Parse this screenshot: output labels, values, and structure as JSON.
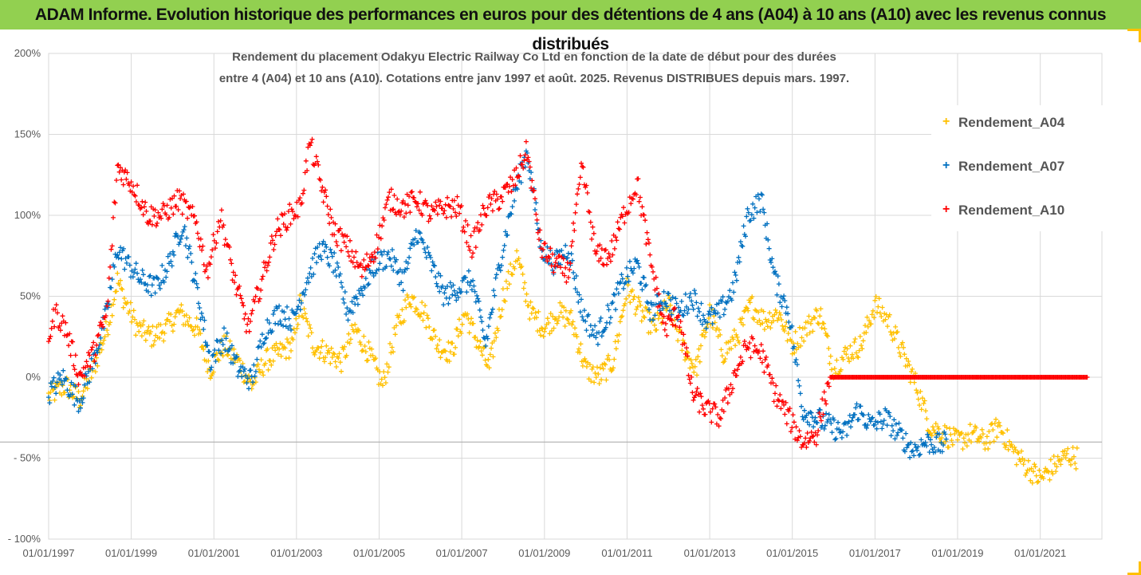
{
  "header": {
    "title": "ADAM Informe. Evolution historique des performances en euros pour des détentions de 4 ans (A04) à 10 ans (A10) avec les revenus connus distribués"
  },
  "colors": {
    "header_bg": "#92d050",
    "A04": "#ffc000",
    "A07": "#0070c0",
    "A10": "#ff0000",
    "grid": "#d9d9d9",
    "text": "#595959"
  },
  "chart_data": {
    "type": "scatter",
    "title_lines": [
      "Rendement du placement Odakyu Electric Railway Co Ltd en fonction de la date de début pour des durées",
      "entre 4 (A04) et 10 ans (A10). Cotations entre janv 1997 et août. 2025. Revenus DISTRIBUES depuis mars. 1997."
    ],
    "xlabel": "",
    "ylabel": "",
    "x_range": [
      "1997-01-01",
      "2022-06-30"
    ],
    "ylim": [
      -100,
      200
    ],
    "y_unit": "%",
    "y_ticks": [
      "200%",
      "150%",
      "100%",
      "50%",
      "0%",
      "- 50%",
      "- 100%"
    ],
    "y_tick_values": [
      200,
      150,
      100,
      50,
      0,
      -50,
      -100
    ],
    "x_ticks": [
      "01/01/1997",
      "01/01/1999",
      "01/01/2001",
      "01/01/2003",
      "01/01/2005",
      "01/01/2007",
      "01/01/2009",
      "01/01/2011",
      "01/01/2013",
      "01/01/2015",
      "01/01/2017",
      "01/01/2019",
      "01/01/2021"
    ],
    "x_tick_years": [
      1997,
      1999,
      2001,
      2003,
      2005,
      2007,
      2009,
      2011,
      2013,
      2015,
      2017,
      2019,
      2021
    ],
    "grid": true,
    "legend_position": "top-right",
    "marker": "+",
    "series": [
      {
        "name": "Rendement_A04",
        "color": "#ffc000",
        "points": [
          [
            "1997-01",
            -12
          ],
          [
            "1997-06",
            -5
          ],
          [
            "1997-10",
            -14
          ],
          [
            "1998-02",
            5
          ],
          [
            "1998-06",
            30
          ],
          [
            "1998-09",
            60
          ],
          [
            "1998-11",
            48
          ],
          [
            "1999-03",
            30
          ],
          [
            "1999-07",
            25
          ],
          [
            "1999-11",
            30
          ],
          [
            "2000-03",
            40
          ],
          [
            "2000-08",
            30
          ],
          [
            "2000-12",
            5
          ],
          [
            "2001-04",
            20
          ],
          [
            "2001-08",
            10
          ],
          [
            "2001-12",
            -5
          ],
          [
            "2002-04",
            10
          ],
          [
            "2002-08",
            15
          ],
          [
            "2002-12",
            20
          ],
          [
            "2003-02",
            45
          ],
          [
            "2003-06",
            20
          ],
          [
            "2003-10",
            15
          ],
          [
            "2004-02",
            10
          ],
          [
            "2004-06",
            30
          ],
          [
            "2004-10",
            15
          ],
          [
            "2005-02",
            -5
          ],
          [
            "2005-06",
            30
          ],
          [
            "2005-10",
            50
          ],
          [
            "2006-02",
            40
          ],
          [
            "2006-06",
            20
          ],
          [
            "2006-10",
            15
          ],
          [
            "2007-02",
            40
          ],
          [
            "2007-05",
            25
          ],
          [
            "2007-09",
            5
          ],
          [
            "2008-01",
            50
          ],
          [
            "2008-05",
            75
          ],
          [
            "2008-09",
            40
          ],
          [
            "2009-01",
            30
          ],
          [
            "2009-05",
            40
          ],
          [
            "2009-09",
            35
          ],
          [
            "2010-01",
            5
          ],
          [
            "2010-05",
            0
          ],
          [
            "2010-09",
            10
          ],
          [
            "2011-01",
            55
          ],
          [
            "2011-05",
            40
          ],
          [
            "2011-09",
            30
          ],
          [
            "2012-01",
            45
          ],
          [
            "2012-05",
            20
          ],
          [
            "2012-09",
            5
          ],
          [
            "2013-01",
            40
          ],
          [
            "2013-05",
            15
          ],
          [
            "2013-09",
            25
          ],
          [
            "2014-01",
            45
          ],
          [
            "2014-05",
            35
          ],
          [
            "2014-09",
            40
          ],
          [
            "2015-01",
            20
          ],
          [
            "2015-05",
            30
          ],
          [
            "2015-09",
            40
          ],
          [
            "2016-01",
            5
          ],
          [
            "2016-05",
            15
          ],
          [
            "2016-09",
            20
          ],
          [
            "2017-01",
            45
          ],
          [
            "2017-05",
            35
          ],
          [
            "2017-09",
            15
          ],
          [
            "2018-01",
            -5
          ],
          [
            "2018-05",
            -30
          ],
          [
            "2018-09",
            -35
          ],
          [
            "2019-01",
            -40
          ],
          [
            "2019-05",
            -35
          ],
          [
            "2019-09",
            -40
          ],
          [
            "2020-01",
            -30
          ],
          [
            "2020-05",
            -45
          ],
          [
            "2020-09",
            -55
          ],
          [
            "2021-01",
            -63
          ],
          [
            "2021-05",
            -55
          ],
          [
            "2021-09",
            -48
          ],
          [
            "2021-12",
            -50
          ]
        ]
      },
      {
        "name": "Rendement_A07",
        "color": "#0070c0",
        "points": [
          [
            "1997-01",
            -10
          ],
          [
            "1997-05",
            0
          ],
          [
            "1997-10",
            -15
          ],
          [
            "1998-02",
            10
          ],
          [
            "1998-06",
            40
          ],
          [
            "1998-09",
            80
          ],
          [
            "1998-12",
            70
          ],
          [
            "1999-04",
            60
          ],
          [
            "1999-08",
            55
          ],
          [
            "1999-12",
            70
          ],
          [
            "2000-04",
            95
          ],
          [
            "2000-08",
            55
          ],
          [
            "2000-12",
            10
          ],
          [
            "2001-04",
            25
          ],
          [
            "2001-08",
            5
          ],
          [
            "2001-12",
            -2
          ],
          [
            "2002-04",
            30
          ],
          [
            "2002-08",
            40
          ],
          [
            "2002-12",
            35
          ],
          [
            "2003-04",
            60
          ],
          [
            "2003-08",
            80
          ],
          [
            "2003-12",
            70
          ],
          [
            "2004-04",
            40
          ],
          [
            "2004-08",
            55
          ],
          [
            "2004-12",
            70
          ],
          [
            "2005-04",
            75
          ],
          [
            "2005-08",
            60
          ],
          [
            "2005-12",
            90
          ],
          [
            "2006-04",
            70
          ],
          [
            "2006-08",
            50
          ],
          [
            "2006-12",
            55
          ],
          [
            "2007-04",
            60
          ],
          [
            "2007-08",
            20
          ],
          [
            "2007-12",
            70
          ],
          [
            "2008-04",
            110
          ],
          [
            "2008-08",
            140
          ],
          [
            "2008-12",
            80
          ],
          [
            "2009-04",
            70
          ],
          [
            "2009-08",
            80
          ],
          [
            "2009-12",
            40
          ],
          [
            "2010-04",
            25
          ],
          [
            "2010-08",
            40
          ],
          [
            "2010-12",
            60
          ],
          [
            "2011-04",
            70
          ],
          [
            "2011-08",
            40
          ],
          [
            "2011-12",
            50
          ],
          [
            "2012-04",
            40
          ],
          [
            "2012-08",
            50
          ],
          [
            "2012-12",
            35
          ],
          [
            "2013-04",
            40
          ],
          [
            "2013-08",
            55
          ],
          [
            "2013-12",
            100
          ],
          [
            "2014-04",
            110
          ],
          [
            "2014-08",
            60
          ],
          [
            "2014-12",
            40
          ],
          [
            "2015-04",
            -20
          ],
          [
            "2015-08",
            -25
          ],
          [
            "2015-12",
            -30
          ],
          [
            "2016-04",
            -35
          ],
          [
            "2016-08",
            -20
          ],
          [
            "2016-12",
            -30
          ],
          [
            "2017-04",
            -25
          ],
          [
            "2017-08",
            -35
          ],
          [
            "2017-12",
            -45
          ],
          [
            "2018-04",
            -40
          ],
          [
            "2018-08",
            -42
          ],
          [
            "2018-10",
            -40
          ]
        ]
      },
      {
        "name": "Rendement_A10",
        "color": "#ff0000",
        "points": [
          [
            "1997-01",
            25
          ],
          [
            "1997-03",
            40
          ],
          [
            "1997-06",
            30
          ],
          [
            "1997-10",
            0
          ],
          [
            "1998-02",
            15
          ],
          [
            "1998-06",
            40
          ],
          [
            "1998-09",
            130
          ],
          [
            "1999-01",
            120
          ],
          [
            "1999-06",
            100
          ],
          [
            "1999-10",
            100
          ],
          [
            "2000-03",
            110
          ],
          [
            "2000-08",
            95
          ],
          [
            "2000-11",
            65
          ],
          [
            "2001-03",
            100
          ],
          [
            "2001-07",
            60
          ],
          [
            "2001-11",
            30
          ],
          [
            "2002-03",
            60
          ],
          [
            "2002-07",
            90
          ],
          [
            "2002-11",
            100
          ],
          [
            "2003-02",
            105
          ],
          [
            "2003-05",
            145
          ],
          [
            "2003-08",
            120
          ],
          [
            "2003-12",
            90
          ],
          [
            "2004-04",
            80
          ],
          [
            "2004-08",
            65
          ],
          [
            "2004-12",
            80
          ],
          [
            "2005-04",
            110
          ],
          [
            "2005-08",
            105
          ],
          [
            "2005-12",
            110
          ],
          [
            "2006-04",
            100
          ],
          [
            "2006-08",
            105
          ],
          [
            "2006-12",
            105
          ],
          [
            "2007-04",
            80
          ],
          [
            "2007-08",
            105
          ],
          [
            "2007-12",
            110
          ],
          [
            "2008-04",
            120
          ],
          [
            "2008-08",
            140
          ],
          [
            "2008-12",
            80
          ],
          [
            "2009-04",
            70
          ],
          [
            "2009-08",
            65
          ],
          [
            "2009-12",
            130
          ],
          [
            "2010-04",
            75
          ],
          [
            "2010-08",
            75
          ],
          [
            "2010-12",
            100
          ],
          [
            "2011-04",
            120
          ],
          [
            "2011-08",
            70
          ],
          [
            "2011-12",
            30
          ],
          [
            "2012-04",
            40
          ],
          [
            "2012-08",
            -10
          ],
          [
            "2012-12",
            -20
          ],
          [
            "2013-04",
            -25
          ],
          [
            "2013-08",
            0
          ],
          [
            "2013-12",
            20
          ],
          [
            "2014-04",
            15
          ],
          [
            "2014-08",
            -10
          ],
          [
            "2014-12",
            -25
          ],
          [
            "2015-04",
            -40
          ],
          [
            "2015-08",
            -35
          ],
          [
            "2015-12",
            0
          ],
          [
            "2016-06",
            0
          ],
          [
            "2017-01",
            0
          ],
          [
            "2017-08",
            0
          ],
          [
            "2018-03",
            0
          ],
          [
            "2018-10",
            0
          ],
          [
            "2019-05",
            0
          ],
          [
            "2019-12",
            0
          ],
          [
            "2020-07",
            0
          ],
          [
            "2021-02",
            0
          ],
          [
            "2021-09",
            0
          ],
          [
            "2022-03",
            0
          ]
        ]
      }
    ]
  }
}
